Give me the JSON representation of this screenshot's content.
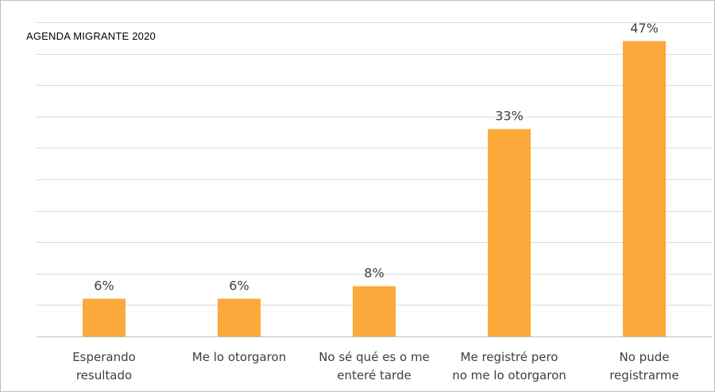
{
  "source_label": "AGENDA MIGRANTE 2020",
  "chart_data": {
    "type": "bar",
    "categories": [
      [
        "Esperando",
        "resultado"
      ],
      [
        "Me lo otorgaron"
      ],
      [
        "No sé qué es  o me",
        "enteré tarde"
      ],
      [
        "Me registré pero",
        "no me lo otorgaron"
      ],
      [
        "No pude",
        "registrarme"
      ]
    ],
    "values": [
      6,
      6,
      8,
      33,
      47
    ],
    "value_labels": [
      "6%",
      "6%",
      "8%",
      "33%",
      "47%"
    ],
    "ylim": [
      0,
      50
    ],
    "grid": true,
    "bar_color": "#FBA93A",
    "gridline_color": "#d9d9d9",
    "label_color": "#404040"
  }
}
